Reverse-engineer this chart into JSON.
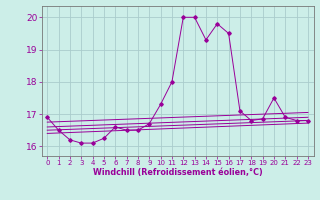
{
  "xlabel": "Windchill (Refroidissement éolien,°C)",
  "background_color": "#cceee8",
  "grid_color": "#aacccc",
  "line_color": "#990099",
  "xlim": [
    -0.5,
    23.5
  ],
  "ylim": [
    15.7,
    20.35
  ],
  "yticks": [
    16,
    17,
    18,
    19,
    20
  ],
  "xticks": [
    0,
    1,
    2,
    3,
    4,
    5,
    6,
    7,
    8,
    9,
    10,
    11,
    12,
    13,
    14,
    15,
    16,
    17,
    18,
    19,
    20,
    21,
    22,
    23
  ],
  "main_series": {
    "x": [
      0,
      1,
      2,
      3,
      4,
      5,
      6,
      7,
      8,
      9,
      10,
      11,
      12,
      13,
      14,
      15,
      16,
      17,
      18,
      19,
      20,
      21,
      22,
      23
    ],
    "y": [
      16.9,
      16.5,
      16.2,
      16.1,
      16.1,
      16.25,
      16.6,
      16.5,
      16.5,
      16.7,
      17.3,
      18.0,
      20.0,
      20.0,
      19.3,
      19.8,
      19.5,
      17.1,
      16.8,
      16.85,
      17.5,
      16.9,
      16.8,
      16.8
    ]
  },
  "trend_lines": [
    {
      "x": [
        0,
        23
      ],
      "y": [
        16.75,
        17.05
      ]
    },
    {
      "x": [
        0,
        23
      ],
      "y": [
        16.6,
        16.9
      ]
    },
    {
      "x": [
        0,
        23
      ],
      "y": [
        16.5,
        16.8
      ]
    },
    {
      "x": [
        0,
        23
      ],
      "y": [
        16.4,
        16.72
      ]
    }
  ]
}
